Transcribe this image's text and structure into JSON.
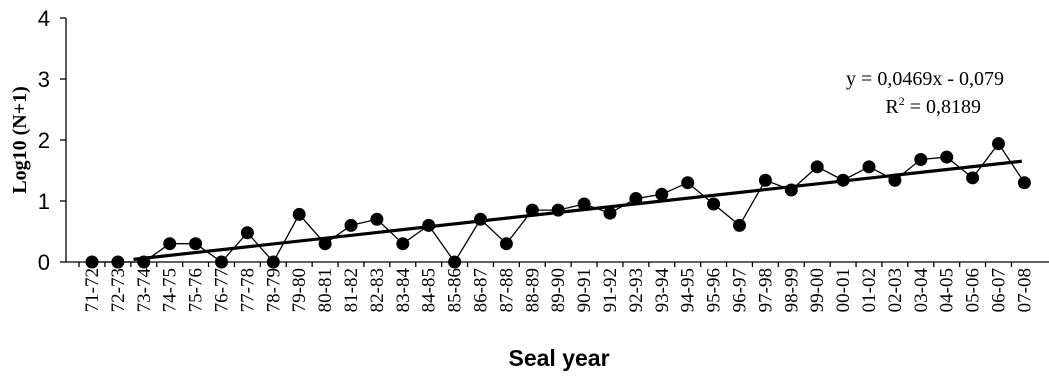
{
  "chart_data": {
    "type": "line",
    "title": "",
    "xlabel": "Seal year",
    "ylabel": "Log10 (N+1)",
    "ylim": [
      0,
      4
    ],
    "yticks": [
      "0",
      "1",
      "2",
      "3",
      "4"
    ],
    "grid": false,
    "categories": [
      "71-72",
      "72-73",
      "73-74",
      "74-75",
      "75-76",
      "76-77",
      "77-78",
      "78-79",
      "79-80",
      "80-81",
      "81-82",
      "82-83",
      "83-84",
      "84-85",
      "85-86",
      "86-87",
      "87-88",
      "88-89",
      "89-90",
      "90-91",
      "91-92",
      "92-93",
      "93-94",
      "94-95",
      "95-96",
      "96-97",
      "97-98",
      "98-99",
      "99-00",
      "00-01",
      "01-02",
      "02-03",
      "03-04",
      "04-05",
      "05-06",
      "06-07",
      "07-08"
    ],
    "series": [
      {
        "values": [
          0,
          0,
          0,
          0.3,
          0.3,
          0,
          0.48,
          0,
          0.78,
          0.3,
          0.6,
          0.7,
          0.3,
          0.6,
          0,
          0.7,
          0.3,
          0.85,
          0.85,
          0.95,
          0.8,
          1.04,
          1.11,
          1.3,
          0.95,
          0.6,
          1.34,
          1.18,
          1.56,
          1.34,
          1.56,
          1.34,
          1.68,
          1.72,
          1.38,
          1.94,
          1.3
        ],
        "color": "#000000",
        "marker": "filled-circle"
      }
    ],
    "trendline": {
      "type": "linear",
      "slope": 0.0469,
      "intercept": -0.079,
      "color": "#000000",
      "equation_label": "y = 0,0469x - 0,079",
      "r2_label_prefix": "R",
      "r2_label_suffix": " = 0,8189",
      "r2_superscript": "2"
    }
  }
}
